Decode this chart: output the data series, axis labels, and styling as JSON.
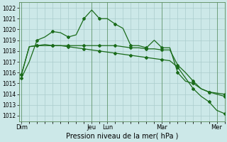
{
  "background_color": "#cce8e8",
  "grid_color": "#aacccc",
  "line_color": "#1a6b1a",
  "title": "Pression niveau de la mer( hPa )",
  "ylim": [
    1011.5,
    1022.5
  ],
  "yticks": [
    1012,
    1013,
    1014,
    1015,
    1016,
    1017,
    1018,
    1019,
    1020,
    1021,
    1022
  ],
  "day_labels": [
    "Dim",
    "",
    "",
    "Jeu",
    "Lun",
    "",
    "",
    "Mar",
    "",
    "Mer"
  ],
  "day_positions": [
    0,
    3,
    6,
    9,
    11,
    14,
    17,
    18,
    21,
    25
  ],
  "xlim": [
    -0.3,
    26
  ],
  "n_points": 27,
  "series1": [
    1015.5,
    1017.0,
    1019.0,
    1019.3,
    1019.8,
    1019.7,
    1019.3,
    1019.5,
    1021.0,
    1021.8,
    1021.0,
    1021.0,
    1020.5,
    1020.1,
    1018.5,
    1018.5,
    1018.3,
    1019.0,
    1018.3,
    1018.3,
    1016.0,
    1015.2,
    1015.0,
    1014.5,
    1014.2,
    1014.1,
    1014.0
  ],
  "series2": [
    1015.8,
    1018.4,
    1018.5,
    1018.5,
    1018.5,
    1018.5,
    1018.5,
    1018.5,
    1018.5,
    1018.5,
    1018.5,
    1018.5,
    1018.5,
    1018.4,
    1018.3,
    1018.3,
    1018.2,
    1018.2,
    1018.1,
    1018.1,
    1016.7,
    1016.0,
    1015.2,
    1014.5,
    1014.2,
    1014.0,
    1013.8
  ],
  "series3": [
    1015.8,
    1018.4,
    1018.5,
    1018.6,
    1018.5,
    1018.5,
    1018.4,
    1018.3,
    1018.2,
    1018.1,
    1018.0,
    1017.9,
    1017.8,
    1017.7,
    1017.6,
    1017.5,
    1017.4,
    1017.3,
    1017.2,
    1017.1,
    1016.5,
    1015.5,
    1014.5,
    1013.8,
    1013.3,
    1012.5,
    1012.2
  ],
  "xlabel_fontsize": 7,
  "ylabel_fontsize": 5,
  "tick_fontsize": 5.5,
  "xtick_fontsize": 6
}
